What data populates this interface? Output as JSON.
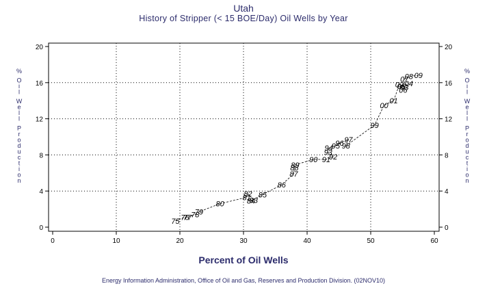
{
  "title": "Utah",
  "subtitle": "History of Stripper (< 15 BOE/Day) Oil Wells by Year",
  "footer": "Energy Information Administration, Office of Oil and Gas, Reserves and Production Division. (02NOV10)",
  "colors": {
    "title": "#2b2b6b",
    "grid": "#000000",
    "line": "#000000"
  },
  "chart_data": {
    "type": "scatter",
    "title": "History of Stripper (< 15 BOE/Day) Oil Wells by Year",
    "xlabel": "Percent of Oil Wells",
    "ylabel": "% Oil Well Production",
    "xlim": [
      0,
      60
    ],
    "ylim": [
      0,
      20
    ],
    "xticks": [
      "0",
      "10",
      "20",
      "30",
      "40",
      "50",
      "60"
    ],
    "yticks": [
      "0",
      "4",
      "8",
      "12",
      "16",
      "20"
    ],
    "grid": true,
    "connected": true,
    "points": [
      {
        "label": "75",
        "x": 19.3,
        "y": 0.7
      },
      {
        "label": "76",
        "x": 20.8,
        "y": 1.1
      },
      {
        "label": "77",
        "x": 21.2,
        "y": 1.1
      },
      {
        "label": "78",
        "x": 22.4,
        "y": 1.4
      },
      {
        "label": "79",
        "x": 23.0,
        "y": 1.7
      },
      {
        "label": "80",
        "x": 26.3,
        "y": 2.6
      },
      {
        "label": "81",
        "x": 30.5,
        "y": 3.3
      },
      {
        "label": "82",
        "x": 30.7,
        "y": 3.7
      },
      {
        "label": "83",
        "x": 31.6,
        "y": 3.0
      },
      {
        "label": "84",
        "x": 31.2,
        "y": 2.9
      },
      {
        "label": "85",
        "x": 33.0,
        "y": 3.6
      },
      {
        "label": "86",
        "x": 36.0,
        "y": 4.7
      },
      {
        "label": "87",
        "x": 37.9,
        "y": 5.9
      },
      {
        "label": "88",
        "x": 38.0,
        "y": 6.6
      },
      {
        "label": "89",
        "x": 38.1,
        "y": 6.9
      },
      {
        "label": "90",
        "x": 41.0,
        "y": 7.5
      },
      {
        "label": "91",
        "x": 43.0,
        "y": 7.5
      },
      {
        "label": "92",
        "x": 44.1,
        "y": 7.8
      },
      {
        "label": "93",
        "x": 43.3,
        "y": 8.3
      },
      {
        "label": "94",
        "x": 43.4,
        "y": 8.8
      },
      {
        "label": "95",
        "x": 44.5,
        "y": 9.0
      },
      {
        "label": "96",
        "x": 45.1,
        "y": 9.3
      },
      {
        "label": "97",
        "x": 46.5,
        "y": 9.7
      },
      {
        "label": "98",
        "x": 46.1,
        "y": 9.0
      },
      {
        "label": "99",
        "x": 50.6,
        "y": 11.3
      },
      {
        "label": "00",
        "x": 52.1,
        "y": 13.5
      },
      {
        "label": "01",
        "x": 53.6,
        "y": 14.0
      },
      {
        "label": "02",
        "x": 54.5,
        "y": 15.8
      },
      {
        "label": "03",
        "x": 55.3,
        "y": 15.5
      },
      {
        "label": "04",
        "x": 56.0,
        "y": 15.9
      },
      {
        "label": "05",
        "x": 54.8,
        "y": 15.6
      },
      {
        "label": "06",
        "x": 55.1,
        "y": 15.2
      },
      {
        "label": "07",
        "x": 55.3,
        "y": 16.4
      },
      {
        "label": "08",
        "x": 56.0,
        "y": 16.7
      },
      {
        "label": "09",
        "x": 57.5,
        "y": 16.8
      }
    ]
  }
}
